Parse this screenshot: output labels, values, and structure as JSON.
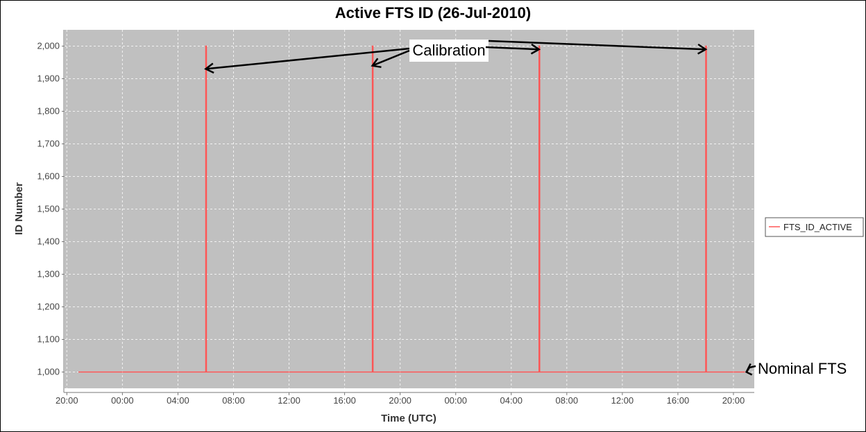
{
  "chart_data": {
    "type": "line",
    "title": "Active FTS ID (26-Jul-2010)",
    "xlabel": "Time (UTC)",
    "ylabel": "ID Number",
    "ylim": [
      950,
      2050
    ],
    "xlim": [
      "2010-07-25T19:50",
      "2010-07-27T21:30"
    ],
    "y_ticks": [
      "1,000",
      "1,100",
      "1,200",
      "1,300",
      "1,400",
      "1,500",
      "1,600",
      "1,700",
      "1,800",
      "1,900",
      "2,000"
    ],
    "x_ticks": [
      "20:00",
      "00:00",
      "04:00",
      "08:00",
      "12:00",
      "16:00",
      "20:00",
      "00:00",
      "04:00",
      "08:00",
      "12:00",
      "16:00",
      "20:00"
    ],
    "grid": true,
    "legend_position": "right",
    "plot_background": "#c0c0c0",
    "series": [
      {
        "name": "FTS_ID_ACTIVE",
        "color": "#ff5555",
        "points": [
          [
            "2010-07-25T20:50",
            1000
          ],
          [
            "2010-07-26T06:00",
            1000
          ],
          [
            "2010-07-26T06:00",
            2000
          ],
          [
            "2010-07-26T06:03",
            2000
          ],
          [
            "2010-07-26T06:03",
            1000
          ],
          [
            "2010-07-26T18:00",
            1000
          ],
          [
            "2010-07-26T18:00",
            2000
          ],
          [
            "2010-07-26T18:03",
            2000
          ],
          [
            "2010-07-26T18:03",
            1000
          ],
          [
            "2010-07-27T06:00",
            1000
          ],
          [
            "2010-07-27T06:00",
            2000
          ],
          [
            "2010-07-27T06:03",
            2000
          ],
          [
            "2010-07-27T06:03",
            1000
          ],
          [
            "2010-07-27T18:00",
            1000
          ],
          [
            "2010-07-27T18:00",
            2000
          ],
          [
            "2010-07-27T18:03",
            2000
          ],
          [
            "2010-07-27T18:03",
            1000
          ],
          [
            "2010-07-27T20:50",
            1000
          ]
        ]
      }
    ],
    "annotations": [
      {
        "text": "Calibration",
        "points_to": [
          [
            "2010-07-26T06:00",
            1930
          ],
          [
            "2010-07-26T18:00",
            1940
          ],
          [
            "2010-07-27T06:00",
            1990
          ],
          [
            "2010-07-27T18:00",
            1990
          ]
        ]
      },
      {
        "text": "Nominal FTS",
        "points_to": [
          [
            "2010-07-27T20:50",
            1000
          ]
        ]
      }
    ]
  }
}
